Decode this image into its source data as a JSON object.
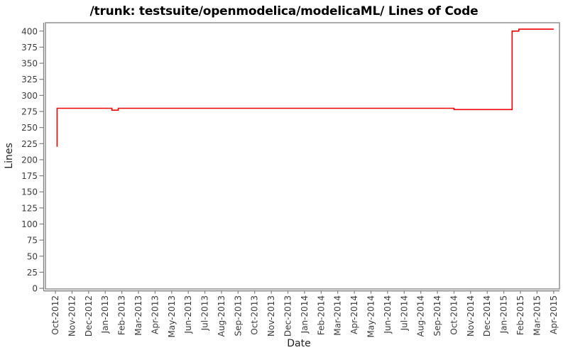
{
  "chart_data": {
    "type": "line",
    "title": "/trunk: testsuite/openmodelica/modelicaML/ Lines of Code",
    "xlabel": "Date",
    "ylabel": "Lines",
    "grid": false,
    "legend": "none",
    "line_color": "#ee0000",
    "frame_color": "#808080",
    "tick_color": "#808080",
    "tick_label_color": "#3d3d3d",
    "axis_label_color": "#222222",
    "background_color": "#ffffff",
    "x_tick_labels": [
      "Oct-2012",
      "Nov-2012",
      "Dec-2012",
      "Jan-2013",
      "Feb-2013",
      "Mar-2013",
      "Apr-2013",
      "May-2013",
      "Jun-2013",
      "Jul-2013",
      "Aug-2013",
      "Sep-2013",
      "Oct-2013",
      "Nov-2013",
      "Dec-2013",
      "Jan-2014",
      "Feb-2014",
      "Mar-2014",
      "Apr-2014",
      "May-2014",
      "Jun-2014",
      "Jul-2014",
      "Aug-2014",
      "Sep-2014",
      "Oct-2014",
      "Nov-2014",
      "Dec-2014",
      "Jan-2015",
      "Feb-2015",
      "Mar-2015",
      "Apr-2015"
    ],
    "y_ticks": [
      0,
      25,
      50,
      75,
      100,
      125,
      150,
      175,
      200,
      225,
      250,
      275,
      300,
      325,
      350,
      375,
      400
    ],
    "xlim": [
      -0.6,
      30.35
    ],
    "ylim": [
      -1,
      413
    ],
    "series": [
      {
        "name": "Lines of Code",
        "color": "#ee0000",
        "step_points": [
          {
            "x": 0.1,
            "y": 220
          },
          {
            "x": 0.1,
            "y": 280
          },
          {
            "x": 3.4,
            "y": 280
          },
          {
            "x": 3.4,
            "y": 277
          },
          {
            "x": 3.78,
            "y": 277
          },
          {
            "x": 3.78,
            "y": 280
          },
          {
            "x": 24.0,
            "y": 280
          },
          {
            "x": 24.0,
            "y": 278
          },
          {
            "x": 27.5,
            "y": 278
          },
          {
            "x": 27.5,
            "y": 400
          },
          {
            "x": 27.9,
            "y": 400
          },
          {
            "x": 27.9,
            "y": 403
          },
          {
            "x": 30.0,
            "y": 403
          }
        ]
      }
    ],
    "loc_changes": [
      {
        "date": "Oct-2012",
        "lines": 220
      },
      {
        "date": "Oct-2012",
        "lines": 280
      },
      {
        "date": "Jan-2013",
        "lines": 277
      },
      {
        "date": "Feb-2013",
        "lines": 280
      },
      {
        "date": "Oct-2014",
        "lines": 278
      },
      {
        "date": "Jan-2015",
        "lines": 400
      },
      {
        "date": "Feb-2015",
        "lines": 403
      },
      {
        "date": "Apr-2015",
        "lines": 403
      }
    ]
  }
}
